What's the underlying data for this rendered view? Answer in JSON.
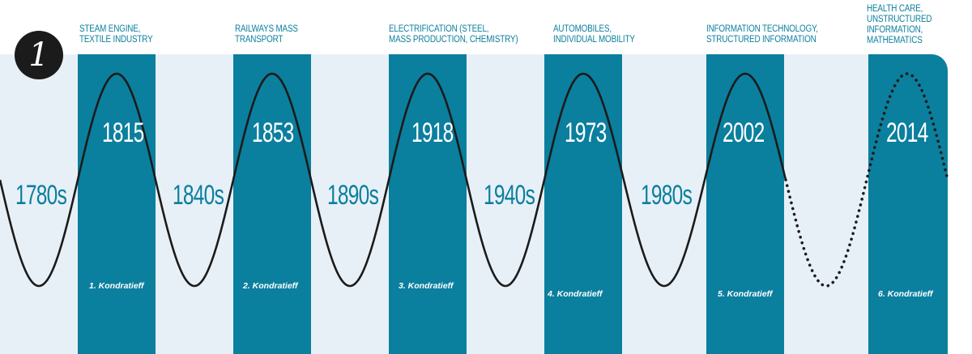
{
  "badge": "1",
  "colors": {
    "background": "#e8f0f7",
    "band": "#0b7f9e",
    "wave": "#1b1b1b",
    "accent_text": "#0b7f9e"
  },
  "decades": [
    "1780s",
    "1840s",
    "1890s",
    "1940s",
    "1980s"
  ],
  "cycles": [
    {
      "header": "STEAM ENGINE,\nTEXTILE INDUSTRY",
      "year": "1815",
      "label": "1. Kondratieff"
    },
    {
      "header": "RAILWAYS MASS\nTRANSPORT",
      "year": "1853",
      "label": "2. Kondratieff"
    },
    {
      "header": "ELECTRIFICATION (STEEL,\nMASS PRODUCTION, CHEMISTRY)",
      "year": "1918",
      "label": "3. Kondratieff"
    },
    {
      "header": "AUTOMOBILES,\nINDIVIDUAL MOBILITY",
      "year": "1973",
      "label": "4. Kondratieff"
    },
    {
      "header": "INFORMATION TECHNOLOGY,\nSTRUCTURED INFORMATION",
      "year": "2002",
      "label": "5. Kondratieff"
    },
    {
      "header": "HEALTH CARE,\nUNSTRUCTURED INFORMATION,\nMATHEMATICS",
      "year": "2014",
      "label": "6. Kondratieff"
    }
  ]
}
